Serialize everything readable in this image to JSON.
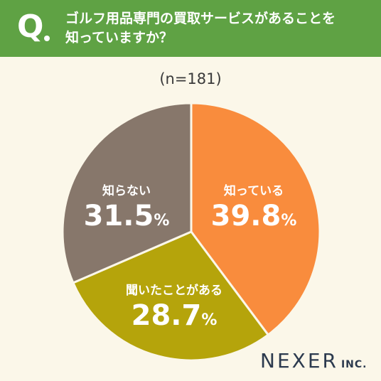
{
  "header": {
    "q_label": "Q",
    "question_line1": "ゴルフ用品専門の買取サービスがあることを",
    "question_line2": "知っていますか？"
  },
  "sample_text": "(n=181)",
  "chart_data": {
    "type": "pie",
    "title": "",
    "slices": [
      {
        "label": "知っている",
        "value": 39.8,
        "display": "39.8",
        "color": "#f98c3d"
      },
      {
        "label": "聞いたことがある",
        "value": 28.7,
        "display": "28.7",
        "color": "#b5a40b"
      },
      {
        "label": "知らない",
        "value": 31.5,
        "display": "31.5",
        "color": "#87776b"
      }
    ],
    "unit": "%",
    "start": "12 o'clock",
    "direction": "clockwise"
  },
  "logo": {
    "main": "NEXER",
    "suffix": "INC."
  }
}
